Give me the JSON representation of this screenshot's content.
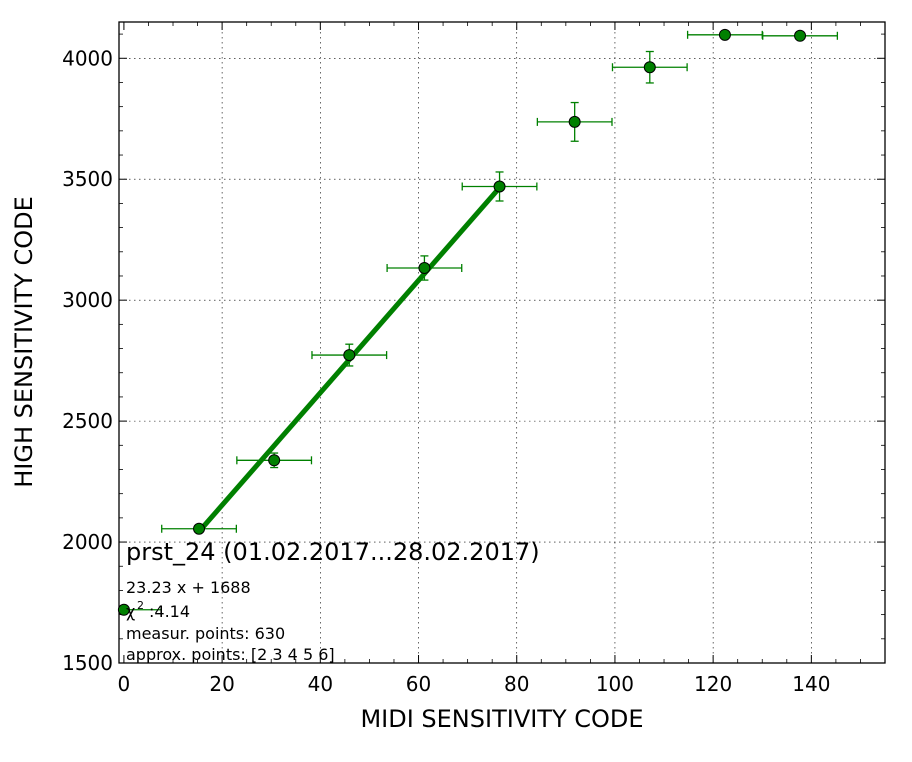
{
  "chart_data": {
    "type": "scatter",
    "title": "",
    "xlabel": "MIDI SENSITIVITY CODE",
    "ylabel": "HIGH SENSITIVITY CODE",
    "xlim": [
      -1,
      155
    ],
    "ylim": [
      1500,
      4150
    ],
    "xticks": [
      0,
      20,
      40,
      60,
      80,
      100,
      120,
      140
    ],
    "yticks": [
      1500,
      2000,
      2500,
      3000,
      3500,
      4000
    ],
    "grid": true,
    "color": "#008000",
    "series": [
      {
        "x": [
          15.3,
          30.6,
          45.9,
          61.2,
          76.5,
          91.8,
          107.1,
          122.4,
          137.7
        ],
        "y": [
          2055,
          2338,
          2773,
          3133,
          3470,
          3737,
          3963,
          4097,
          4093
        ],
        "xerr": [
          7.6,
          7.6,
          7.6,
          7.6,
          7.6,
          7.6,
          7.6,
          7.6,
          7.6
        ],
        "yerr": [
          0,
          30,
          45,
          50,
          60,
          80,
          65,
          0,
          0
        ]
      }
    ],
    "fit": {
      "x_range": [
        15.3,
        76.5
      ],
      "slope": 23.23,
      "intercept": 1688
    },
    "annotations": {
      "title": "prst_24 (01.02.2017...28.02.2017)",
      "equation": "23.23 x + 1688",
      "chi_symbol": "χ",
      "chi_sup": "2",
      "chi_value": ":4.14",
      "measur_points": "measur. points: 630",
      "approx_points": "approx. points: [2 3 4 5 6]"
    },
    "legend_marker": {
      "x": 0.0,
      "y": 1720,
      "xerr": 7.6
    }
  }
}
